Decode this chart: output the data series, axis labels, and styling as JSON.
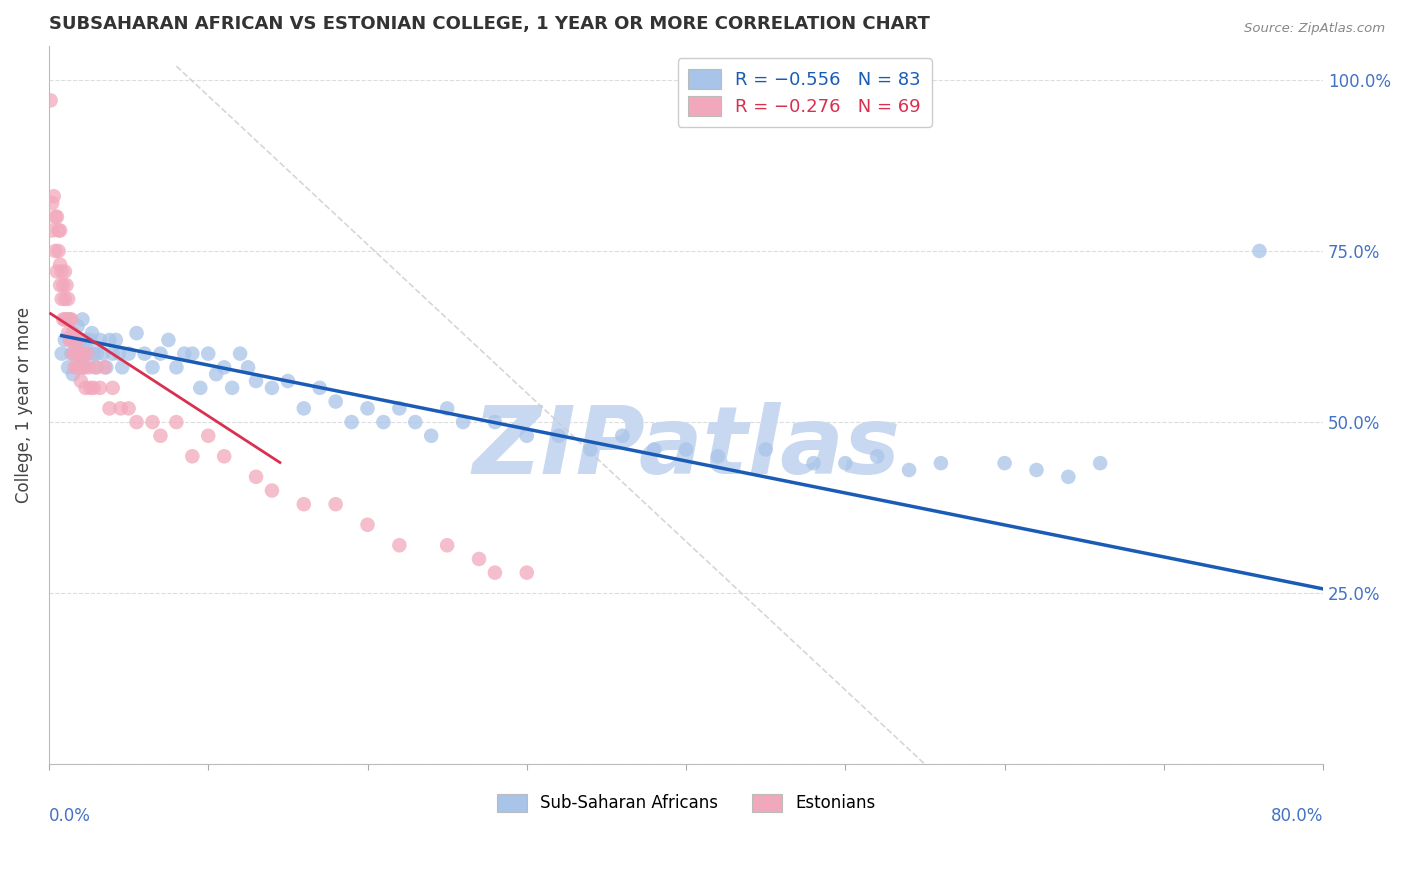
{
  "title": "SUBSAHARAN AFRICAN VS ESTONIAN COLLEGE, 1 YEAR OR MORE CORRELATION CHART",
  "source": "Source: ZipAtlas.com",
  "ylabel": "College, 1 year or more",
  "right_yticklabels": [
    "",
    "25.0%",
    "50.0%",
    "75.0%",
    "100.0%"
  ],
  "blue_color": "#a8c4e8",
  "pink_color": "#f2a8bc",
  "blue_line_color": "#1a5cb5",
  "pink_line_color": "#d93050",
  "watermark": "ZIPatlas",
  "watermark_color": "#c8d8f0",
  "xlim": [
    0.0,
    0.8
  ],
  "ylim": [
    0.0,
    1.05
  ],
  "figsize": [
    14.06,
    8.92
  ],
  "dpi": 100,
  "blue_scatter_x": [
    0.008,
    0.01,
    0.012,
    0.013,
    0.014,
    0.015,
    0.015,
    0.016,
    0.017,
    0.018,
    0.018,
    0.019,
    0.02,
    0.02,
    0.02,
    0.021,
    0.022,
    0.022,
    0.023,
    0.024,
    0.025,
    0.026,
    0.027,
    0.028,
    0.029,
    0.03,
    0.032,
    0.034,
    0.036,
    0.038,
    0.04,
    0.042,
    0.044,
    0.046,
    0.05,
    0.055,
    0.06,
    0.065,
    0.07,
    0.075,
    0.08,
    0.085,
    0.09,
    0.095,
    0.1,
    0.105,
    0.11,
    0.115,
    0.12,
    0.125,
    0.13,
    0.14,
    0.15,
    0.16,
    0.17,
    0.18,
    0.19,
    0.2,
    0.21,
    0.22,
    0.23,
    0.24,
    0.25,
    0.26,
    0.28,
    0.3,
    0.32,
    0.34,
    0.36,
    0.38,
    0.4,
    0.42,
    0.45,
    0.48,
    0.5,
    0.52,
    0.54,
    0.56,
    0.6,
    0.62,
    0.64,
    0.66,
    0.76
  ],
  "blue_scatter_y": [
    0.6,
    0.62,
    0.58,
    0.65,
    0.6,
    0.63,
    0.57,
    0.6,
    0.62,
    0.58,
    0.64,
    0.6,
    0.6,
    0.62,
    0.58,
    0.65,
    0.6,
    0.58,
    0.62,
    0.6,
    0.6,
    0.62,
    0.63,
    0.6,
    0.58,
    0.6,
    0.62,
    0.6,
    0.58,
    0.62,
    0.6,
    0.62,
    0.6,
    0.58,
    0.6,
    0.63,
    0.6,
    0.58,
    0.6,
    0.62,
    0.58,
    0.6,
    0.6,
    0.55,
    0.6,
    0.57,
    0.58,
    0.55,
    0.6,
    0.58,
    0.56,
    0.55,
    0.56,
    0.52,
    0.55,
    0.53,
    0.5,
    0.52,
    0.5,
    0.52,
    0.5,
    0.48,
    0.52,
    0.5,
    0.5,
    0.48,
    0.48,
    0.46,
    0.48,
    0.46,
    0.46,
    0.45,
    0.46,
    0.44,
    0.44,
    0.45,
    0.43,
    0.44,
    0.44,
    0.43,
    0.42,
    0.44,
    0.75
  ],
  "pink_scatter_x": [
    0.001,
    0.002,
    0.002,
    0.003,
    0.004,
    0.004,
    0.005,
    0.005,
    0.006,
    0.006,
    0.007,
    0.007,
    0.007,
    0.008,
    0.008,
    0.009,
    0.009,
    0.01,
    0.01,
    0.01,
    0.011,
    0.011,
    0.012,
    0.012,
    0.013,
    0.013,
    0.014,
    0.014,
    0.015,
    0.015,
    0.016,
    0.016,
    0.017,
    0.018,
    0.018,
    0.019,
    0.02,
    0.02,
    0.021,
    0.022,
    0.023,
    0.024,
    0.025,
    0.026,
    0.028,
    0.03,
    0.032,
    0.035,
    0.038,
    0.04,
    0.045,
    0.05,
    0.055,
    0.065,
    0.07,
    0.08,
    0.09,
    0.1,
    0.11,
    0.13,
    0.14,
    0.16,
    0.18,
    0.2,
    0.22,
    0.25,
    0.27,
    0.28,
    0.3
  ],
  "pink_scatter_y": [
    0.97,
    0.82,
    0.78,
    0.83,
    0.8,
    0.75,
    0.8,
    0.72,
    0.78,
    0.75,
    0.78,
    0.73,
    0.7,
    0.72,
    0.68,
    0.7,
    0.65,
    0.68,
    0.72,
    0.65,
    0.65,
    0.7,
    0.68,
    0.63,
    0.65,
    0.62,
    0.62,
    0.65,
    0.63,
    0.6,
    0.62,
    0.58,
    0.6,
    0.62,
    0.58,
    0.58,
    0.6,
    0.56,
    0.6,
    0.58,
    0.55,
    0.6,
    0.58,
    0.55,
    0.55,
    0.58,
    0.55,
    0.58,
    0.52,
    0.55,
    0.52,
    0.52,
    0.5,
    0.5,
    0.48,
    0.5,
    0.45,
    0.48,
    0.45,
    0.42,
    0.4,
    0.38,
    0.38,
    0.35,
    0.32,
    0.32,
    0.3,
    0.28,
    0.28
  ]
}
